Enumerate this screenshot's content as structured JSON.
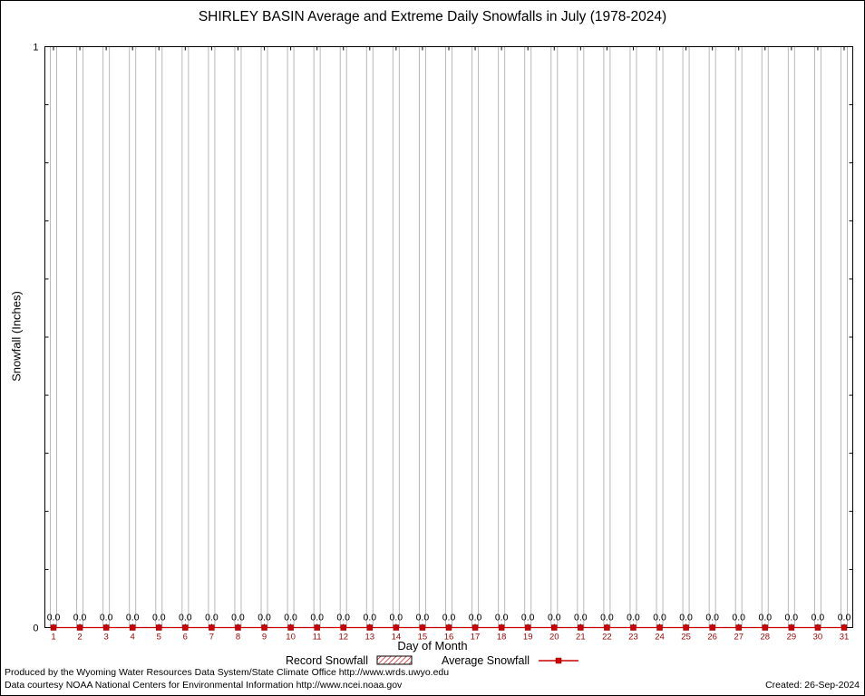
{
  "title": "SHIRLEY BASIN Average and Extreme Daily Snowfalls in July (1978-2024)",
  "chart_data": {
    "type": "line",
    "title": "SHIRLEY BASIN Average and Extreme Daily Snowfalls in July (1978-2024)",
    "xlabel": "Day of Month",
    "ylabel": "Snowfall (Inches)",
    "ylim": [
      0,
      1
    ],
    "grid": true,
    "legend_position": "bottom",
    "categories": [
      1,
      2,
      3,
      4,
      5,
      6,
      7,
      8,
      9,
      10,
      11,
      12,
      13,
      14,
      15,
      16,
      17,
      18,
      19,
      20,
      21,
      22,
      23,
      24,
      25,
      26,
      27,
      28,
      29,
      30,
      31
    ],
    "series": [
      {
        "name": "Record Snowfall",
        "style": "hatched-bar",
        "values": [
          0.0,
          0.0,
          0.0,
          0.0,
          0.0,
          0.0,
          0.0,
          0.0,
          0.0,
          0.0,
          0.0,
          0.0,
          0.0,
          0.0,
          0.0,
          0.0,
          0.0,
          0.0,
          0.0,
          0.0,
          0.0,
          0.0,
          0.0,
          0.0,
          0.0,
          0.0,
          0.0,
          0.0,
          0.0,
          0.0,
          0.0
        ]
      },
      {
        "name": "Average Snowfall",
        "style": "line-point",
        "values": [
          0.0,
          0.0,
          0.0,
          0.0,
          0.0,
          0.0,
          0.0,
          0.0,
          0.0,
          0.0,
          0.0,
          0.0,
          0.0,
          0.0,
          0.0,
          0.0,
          0.0,
          0.0,
          0.0,
          0.0,
          0.0,
          0.0,
          0.0,
          0.0,
          0.0,
          0.0,
          0.0,
          0.0,
          0.0,
          0.0,
          0.0
        ]
      }
    ]
  },
  "legend": {
    "record_label": "Record Snowfall",
    "average_label": "Average Snowfall"
  },
  "footer": {
    "line1": "Produced by the Wyoming Water Resources Data System/State Climate Office http://www.wrds.uwyo.edu",
    "line2": "Data courtesy NOAA National Centers for Environmental Information http://www.ncei.noaa.gov",
    "created": "Created: 26-Sep-2024"
  },
  "colors": {
    "accent": "#cc0000",
    "grid": "#b8b8b8",
    "axis": "#000000",
    "xtick_label": "#990000",
    "value_label": "#000000"
  }
}
